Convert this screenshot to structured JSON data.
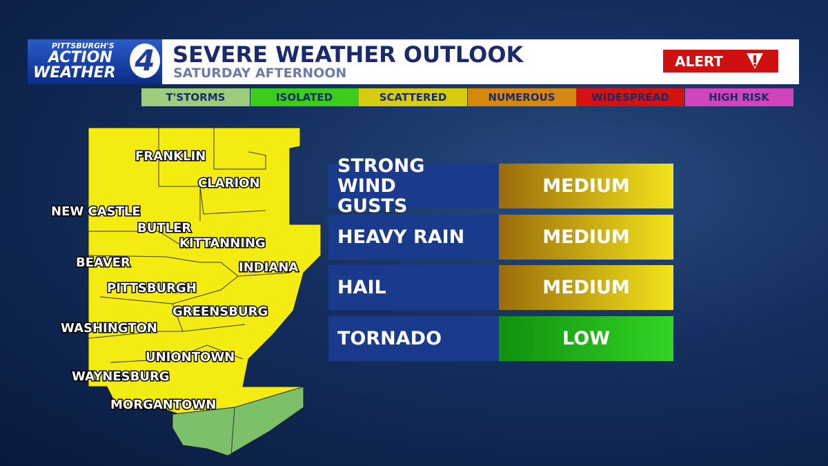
{
  "header": {
    "brand": {
      "top": "PITTSBURGH'S",
      "line1": "ACTION",
      "line2": "WEATHER",
      "number": "4"
    },
    "title": "SEVERE WEATHER OUTLOOK",
    "subtitle": "SATURDAY AFTERNOON",
    "alert": "ALERT"
  },
  "legend": [
    {
      "label": "T'STORMS",
      "color": "#9ccc7c"
    },
    {
      "label": "ISOLATED",
      "color": "#3ccc1c"
    },
    {
      "label": "SCATTERED",
      "color": "#d6cc12"
    },
    {
      "label": "NUMEROUS",
      "color": "#d4880e"
    },
    {
      "label": "WIDESPREAD",
      "color": "#d41212"
    },
    {
      "label": "HIGH RISK",
      "color": "#d044bc"
    }
  ],
  "map": {
    "labels": [
      "FRANKLIN",
      "CLARION",
      "NEW CASTLE",
      "BUTLER",
      "KITTANNING",
      "BEAVER",
      "INDIANA",
      "PITTSBURGH",
      "GREENSBURG",
      "WASHINGTON",
      "UNIONTOWN",
      "WAYNESBURG",
      "MORGANTOWN"
    ]
  },
  "hazards": [
    {
      "name": "STRONG WIND GUSTS",
      "level": "MEDIUM"
    },
    {
      "name": "HEAVY RAIN",
      "level": "MEDIUM"
    },
    {
      "name": "HAIL",
      "level": "MEDIUM"
    },
    {
      "name": "TORNADO",
      "level": "LOW"
    }
  ]
}
